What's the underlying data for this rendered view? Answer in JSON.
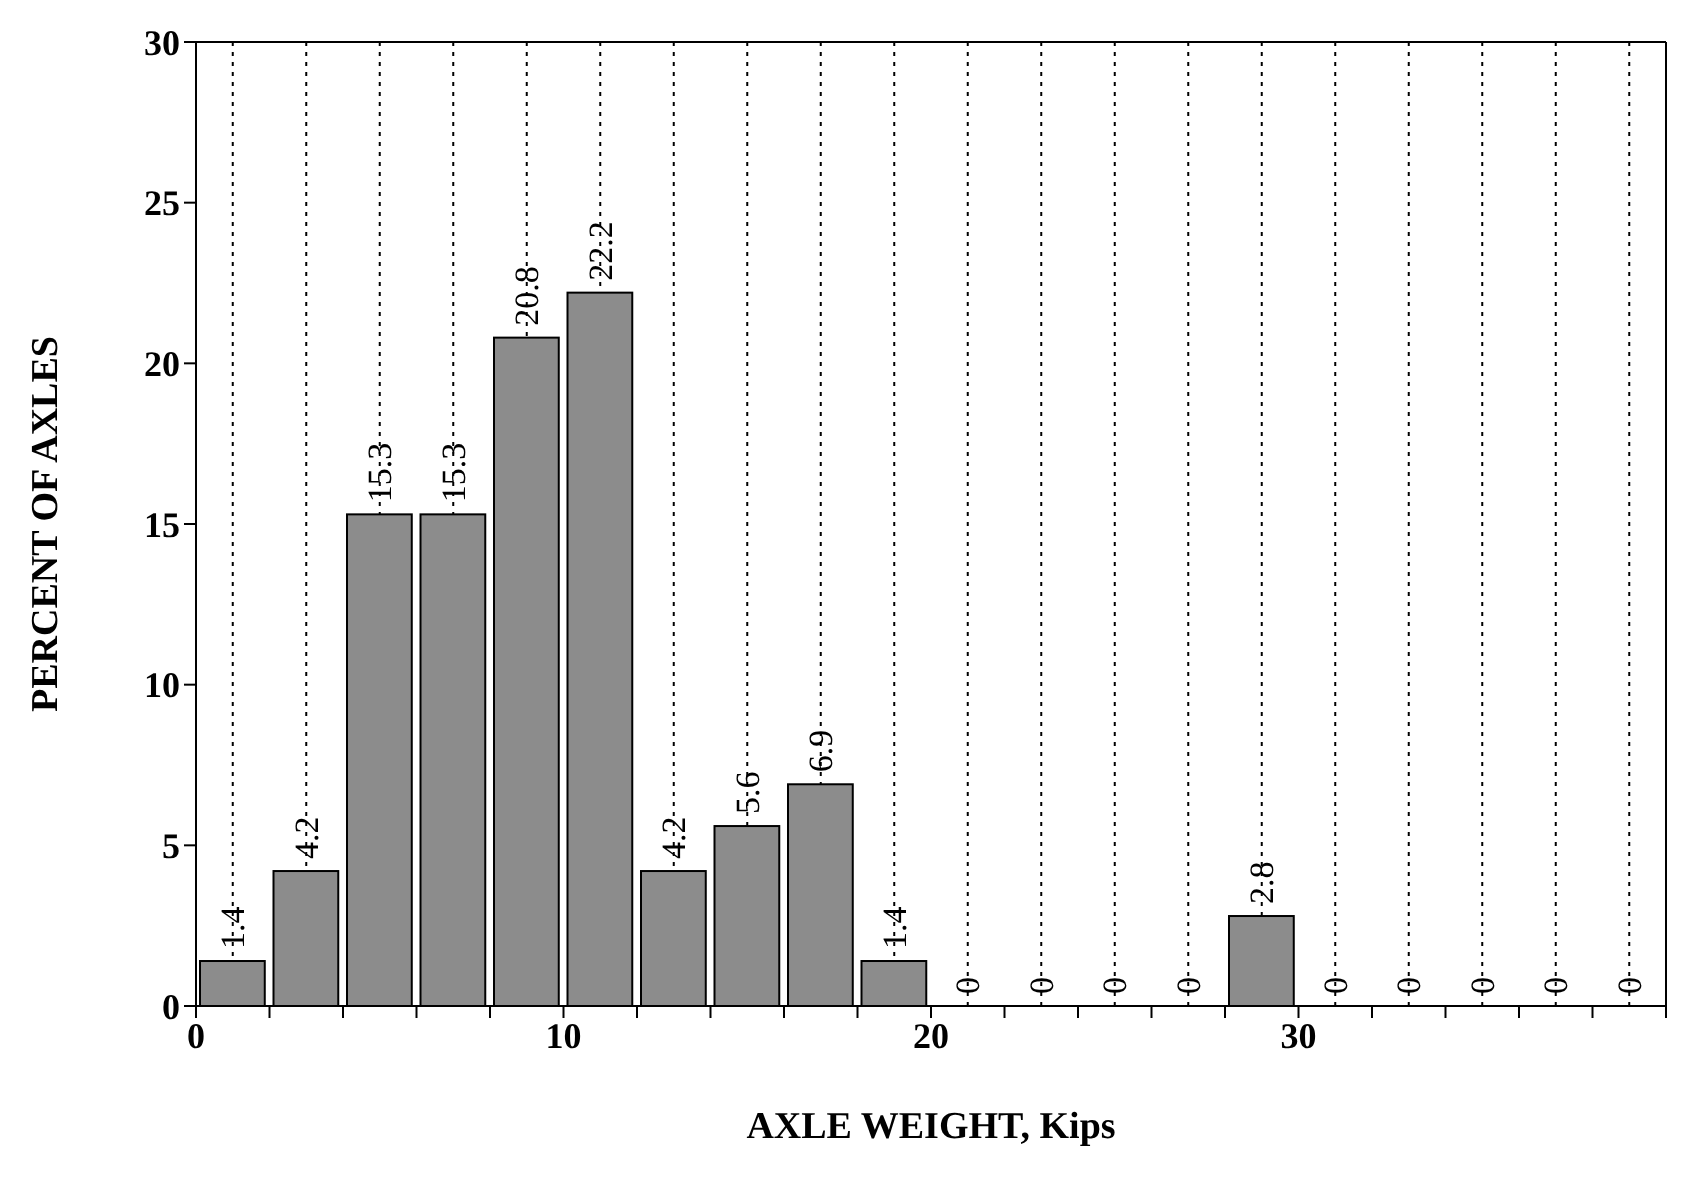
{
  "chart_data": {
    "type": "histogram",
    "xlabel": "AXLE WEIGHT, Kips",
    "ylabel": "PERCENT OF AXLES",
    "bins": [
      0,
      2,
      4,
      6,
      8,
      10,
      12,
      14,
      16,
      18,
      20,
      22,
      24,
      26,
      28,
      30,
      32,
      34,
      36,
      38,
      40
    ],
    "values": [
      1.4,
      4.2,
      15.3,
      15.3,
      20.8,
      22.2,
      4.2,
      5.6,
      6.9,
      1.4,
      0,
      0,
      0,
      0,
      2.8,
      0,
      0,
      0,
      0,
      0
    ],
    "color": "#8c8c8c",
    "data_labels": true,
    "grid": true,
    "xlim": [
      0,
      40
    ],
    "xticks": [
      0,
      {
        "value": 2,
        "label": null
      },
      {
        "value": 4,
        "label": null
      },
      {
        "value": 6,
        "label": null
      },
      {
        "value": 8,
        "label": null
      },
      10,
      {
        "value": 12,
        "label": null
      },
      {
        "value": 14,
        "label": null
      },
      {
        "value": 16,
        "label": null
      },
      {
        "value": 18,
        "label": null
      },
      20,
      {
        "value": 22,
        "label": null
      },
      {
        "value": 24,
        "label": null
      },
      {
        "value": 26,
        "label": null
      },
      {
        "value": 28,
        "label": null
      },
      30,
      {
        "value": 32,
        "label": null
      },
      {
        "value": 34,
        "label": null
      },
      {
        "value": 36,
        "label": null
      },
      {
        "value": 38,
        "label": null
      },
      {
        "value": 40,
        "label": null
      }
    ],
    "ylim": [
      0,
      30
    ],
    "yticks": [
      0,
      5,
      10,
      15,
      20,
      25,
      30
    ]
  }
}
